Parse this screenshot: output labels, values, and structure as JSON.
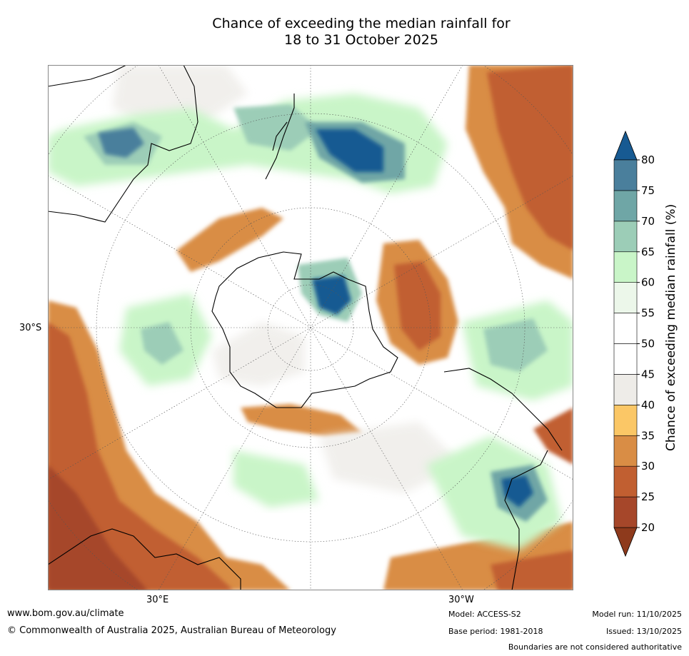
{
  "title_line1": "Chance of exceeding the median rainfall for",
  "title_line2": "18 to 31 October 2025",
  "map": {
    "projection": "south polar stereographic",
    "labels": {
      "lat_30s": "30°S",
      "lon_30e": "30°E",
      "lon_30w": "30°W"
    }
  },
  "colorbar": {
    "label": "Chance of exceeding median rainfall (%)",
    "ticks": [
      "20",
      "25",
      "30",
      "35",
      "40",
      "45",
      "50",
      "55",
      "60",
      "65",
      "70",
      "75",
      "80"
    ],
    "colors": [
      "#8e3a1c",
      "#a6472a",
      "#c15f31",
      "#d98d45",
      "#fbc766",
      "#eeece8",
      "#ffffff",
      "#ffffff",
      "#ecf7ea",
      "#c9f5c8",
      "#9ccdb7",
      "#6fa6a6",
      "#4a7f9c",
      "#175a92"
    ]
  },
  "footer": {
    "website": "www.bom.gov.au/climate",
    "copyright": "© Commonwealth of Australia 2025, Australian Bureau of Meteorology",
    "model": "Model: ACCESS-S2",
    "base_period": "Base period: 1981-2018",
    "model_run": "Model run: 11/10/2025",
    "issued": "Issued: 13/10/2025",
    "disclaimer": "Boundaries are not considered authoritative"
  }
}
